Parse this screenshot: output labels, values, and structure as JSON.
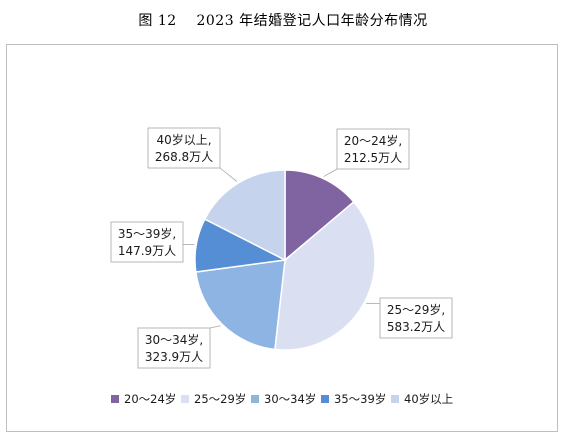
{
  "figure": {
    "title": "图 12    2023 年结婚登记人口年龄分布情况"
  },
  "chart_data": {
    "type": "pie",
    "title": "",
    "unit": "万人",
    "start_angle_deg": 0,
    "direction": "clockwise",
    "slices": [
      {
        "label": "20～24岁",
        "value": 212.5,
        "value_text": "212.5万人",
        "color": "#8064a2"
      },
      {
        "label": "25～29岁",
        "value": 583.2,
        "value_text": "583.2万人",
        "color": "#dae0f2"
      },
      {
        "label": "30～34岁",
        "value": 323.9,
        "value_text": "323.9万人",
        "color": "#8eb4e3"
      },
      {
        "label": "35～39岁",
        "value": 147.9,
        "value_text": "147.9万人",
        "color": "#558ed5"
      },
      {
        "label": "40岁以上",
        "value": 268.8,
        "value_text": "268.8万人",
        "color": "#c5d3ec"
      }
    ],
    "data_labels": [
      {
        "line1": "20～24岁,",
        "line2": "212.5万人"
      },
      {
        "line1": "25～29岁,",
        "line2": "583.2万人"
      },
      {
        "line1": "30～34岁,",
        "line2": "323.9万人"
      },
      {
        "line1": "35～39岁,",
        "line2": "147.9万人"
      },
      {
        "line1": "40岁以上,",
        "line2": "268.8万人"
      }
    ],
    "legend": {
      "position": "bottom",
      "items": [
        "20～24岁",
        "25～29岁",
        "30～34岁",
        "35～39岁",
        "40岁以上"
      ]
    }
  }
}
